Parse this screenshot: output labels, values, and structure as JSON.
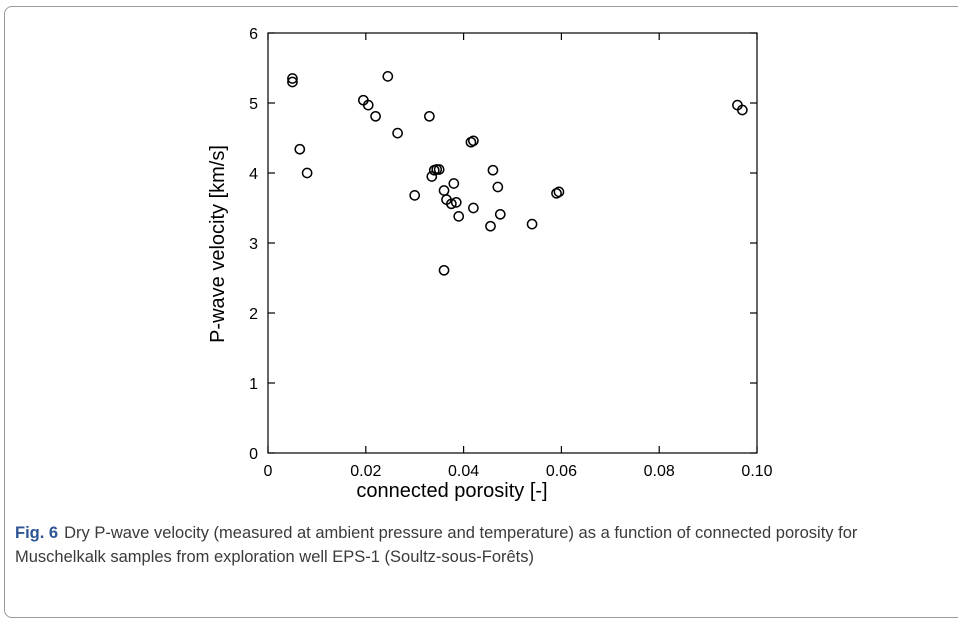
{
  "chart_data": {
    "type": "scatter",
    "xlabel": "connected porosity [-]",
    "ylabel": "P-wave velocity [km/s]",
    "xlim": [
      0,
      0.1
    ],
    "ylim": [
      0,
      6
    ],
    "xticks": [
      "0",
      "0.02",
      "0.04",
      "0.06",
      "0.08",
      "0.10"
    ],
    "yticks": [
      "0",
      "1",
      "2",
      "3",
      "4",
      "5",
      "6"
    ],
    "grid": false,
    "series": [
      {
        "points": [
          [
            0.005,
            5.3
          ],
          [
            0.005,
            5.35
          ],
          [
            0.0065,
            4.34
          ],
          [
            0.008,
            4.0
          ],
          [
            0.0195,
            5.04
          ],
          [
            0.0205,
            4.97
          ],
          [
            0.022,
            4.81
          ],
          [
            0.0245,
            5.38
          ],
          [
            0.0265,
            4.57
          ],
          [
            0.03,
            3.68
          ],
          [
            0.033,
            4.81
          ],
          [
            0.0335,
            3.95
          ],
          [
            0.034,
            4.04
          ],
          [
            0.0345,
            4.05
          ],
          [
            0.035,
            4.05
          ],
          [
            0.036,
            3.75
          ],
          [
            0.0365,
            3.62
          ],
          [
            0.036,
            2.61
          ],
          [
            0.0375,
            3.56
          ],
          [
            0.038,
            3.85
          ],
          [
            0.0385,
            3.58
          ],
          [
            0.039,
            3.38
          ],
          [
            0.0415,
            4.44
          ],
          [
            0.042,
            4.46
          ],
          [
            0.042,
            3.5
          ],
          [
            0.0455,
            3.24
          ],
          [
            0.046,
            4.04
          ],
          [
            0.047,
            3.8
          ],
          [
            0.0475,
            3.41
          ],
          [
            0.054,
            3.27
          ],
          [
            0.059,
            3.71
          ],
          [
            0.0595,
            3.73
          ],
          [
            0.096,
            4.97
          ],
          [
            0.097,
            4.9
          ]
        ]
      }
    ]
  },
  "caption": {
    "label": "Fig. 6",
    "text": "Dry P-wave velocity (measured at ambient pressure and temperature) as a function of connected porosity for Muschelkalk samples from exploration well EPS-1 (Soultz-sous-Forêts)"
  },
  "colors": {
    "marker": "#000000",
    "fig_label": "#2f5496"
  }
}
